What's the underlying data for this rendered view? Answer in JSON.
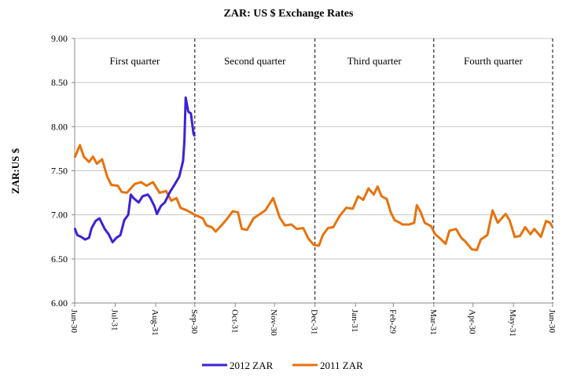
{
  "chart_data": {
    "type": "line",
    "title": "ZAR: US $ Exchange Rates",
    "xlabel": "",
    "ylabel": "ZAR:US $",
    "ylim": [
      6.0,
      9.0
    ],
    "yticks": [
      "6.00",
      "6.50",
      "7.00",
      "7.50",
      "8.00",
      "8.50",
      "9.00"
    ],
    "xticks": [
      "Jun-30",
      "Jul-31",
      "Aug-31",
      "Sep-30",
      "Oct-31",
      "Nov-30",
      "Dec-31",
      "Jan-31",
      "Feb-29",
      "Mar-31",
      "Apr-30",
      "May-31",
      "Jun-30"
    ],
    "grid": "horizontal",
    "legend": "bottom",
    "quarters": [
      "First quarter",
      "Second quarter",
      "Third quarter",
      "Fourth quarter"
    ],
    "series": [
      {
        "name": "2012 ZAR",
        "color": "#3b22d8",
        "points": [
          [
            "2012-06-30",
            6.85
          ],
          [
            "2012-07-02",
            6.77
          ],
          [
            "2012-07-05",
            6.75
          ],
          [
            "2012-07-08",
            6.72
          ],
          [
            "2012-07-11",
            6.74
          ],
          [
            "2012-07-13",
            6.85
          ],
          [
            "2012-07-16",
            6.93
          ],
          [
            "2012-07-19",
            6.96
          ],
          [
            "2012-07-23",
            6.84
          ],
          [
            "2012-07-26",
            6.78
          ],
          [
            "2012-07-29",
            6.69
          ],
          [
            "2012-08-01",
            6.74
          ],
          [
            "2012-08-04",
            6.77
          ],
          [
            "2012-08-07",
            6.94
          ],
          [
            "2012-08-10",
            7.0
          ],
          [
            "2012-08-12",
            7.23
          ],
          [
            "2012-08-14",
            7.19
          ],
          [
            "2012-08-18",
            7.14
          ],
          [
            "2012-08-21",
            7.21
          ],
          [
            "2012-08-25",
            7.23
          ],
          [
            "2012-08-27",
            7.19
          ],
          [
            "2012-08-30",
            7.1
          ],
          [
            "2012-09-01",
            7.01
          ],
          [
            "2012-09-04",
            7.1
          ],
          [
            "2012-09-07",
            7.14
          ],
          [
            "2012-09-11",
            7.26
          ],
          [
            "2012-09-14",
            7.33
          ],
          [
            "2012-09-18",
            7.43
          ],
          [
            "2012-09-21",
            7.61
          ],
          [
            "2012-09-22",
            7.83
          ],
          [
            "2012-09-23",
            8.33
          ],
          [
            "2012-09-25",
            8.17
          ],
          [
            "2012-09-27",
            8.15
          ],
          [
            "2012-09-29",
            7.92
          ],
          [
            "2012-09-30",
            7.89
          ]
        ]
      },
      {
        "name": "2011 ZAR",
        "color": "#e8720c",
        "points": [
          [
            "2011-06-30",
            7.65
          ],
          [
            "2011-07-04",
            7.79
          ],
          [
            "2011-07-07",
            7.66
          ],
          [
            "2011-07-11",
            7.6
          ],
          [
            "2011-07-14",
            7.66
          ],
          [
            "2011-07-17",
            7.58
          ],
          [
            "2011-07-21",
            7.63
          ],
          [
            "2011-07-25",
            7.43
          ],
          [
            "2011-07-28",
            7.34
          ],
          [
            "2011-08-02",
            7.33
          ],
          [
            "2011-08-05",
            7.26
          ],
          [
            "2011-08-09",
            7.25
          ],
          [
            "2011-08-12",
            7.3
          ],
          [
            "2011-08-15",
            7.35
          ],
          [
            "2011-08-20",
            7.37
          ],
          [
            "2011-08-24",
            7.33
          ],
          [
            "2011-08-29",
            7.37
          ],
          [
            "2011-09-03",
            7.25
          ],
          [
            "2011-09-08",
            7.27
          ],
          [
            "2011-09-12",
            7.16
          ],
          [
            "2011-09-16",
            7.19
          ],
          [
            "2011-09-19",
            7.08
          ],
          [
            "2011-09-24",
            7.05
          ],
          [
            "2011-09-30",
            7.0
          ],
          [
            "2011-10-06",
            6.96
          ],
          [
            "2011-10-09",
            6.88
          ],
          [
            "2011-10-13",
            6.86
          ],
          [
            "2011-10-16",
            6.81
          ],
          [
            "2011-10-21",
            6.89
          ],
          [
            "2011-10-25",
            6.96
          ],
          [
            "2011-10-29",
            7.04
          ],
          [
            "2011-11-02",
            7.03
          ],
          [
            "2011-11-05",
            6.84
          ],
          [
            "2011-11-09",
            6.83
          ],
          [
            "2011-11-14",
            6.96
          ],
          [
            "2011-11-18",
            7.0
          ],
          [
            "2011-11-23",
            7.05
          ],
          [
            "2011-11-29",
            7.19
          ],
          [
            "2011-12-04",
            6.97
          ],
          [
            "2011-12-08",
            6.88
          ],
          [
            "2011-12-13",
            6.89
          ],
          [
            "2011-12-17",
            6.84
          ],
          [
            "2011-12-22",
            6.85
          ],
          [
            "2011-12-26",
            6.73
          ],
          [
            "2011-12-30",
            6.66
          ],
          [
            "2012-01-03",
            6.65
          ],
          [
            "2012-01-06",
            6.77
          ],
          [
            "2012-01-10",
            6.85
          ],
          [
            "2012-01-14",
            6.86
          ],
          [
            "2012-01-19",
            6.99
          ],
          [
            "2012-01-24",
            7.08
          ],
          [
            "2012-01-29",
            7.07
          ],
          [
            "2012-02-02",
            7.21
          ],
          [
            "2012-02-06",
            7.17
          ],
          [
            "2012-02-10",
            7.3
          ],
          [
            "2012-02-14",
            7.23
          ],
          [
            "2012-02-17",
            7.32
          ],
          [
            "2012-02-20",
            7.21
          ],
          [
            "2012-02-24",
            7.18
          ],
          [
            "2012-02-27",
            7.03
          ],
          [
            "2012-03-01",
            6.94
          ],
          [
            "2012-03-05",
            6.91
          ],
          [
            "2012-03-07",
            6.89
          ],
          [
            "2012-03-12",
            6.89
          ],
          [
            "2012-03-16",
            6.91
          ],
          [
            "2012-03-18",
            7.11
          ],
          [
            "2012-03-21",
            7.03
          ],
          [
            "2012-03-24",
            6.91
          ],
          [
            "2012-03-29",
            6.87
          ],
          [
            "2012-04-01",
            6.78
          ],
          [
            "2012-04-05",
            6.73
          ],
          [
            "2012-04-09",
            6.67
          ],
          [
            "2012-04-12",
            6.82
          ],
          [
            "2012-04-17",
            6.84
          ],
          [
            "2012-04-21",
            6.74
          ],
          [
            "2012-04-24",
            6.7
          ],
          [
            "2012-04-29",
            6.61
          ],
          [
            "2012-05-03",
            6.6
          ],
          [
            "2012-05-06",
            6.72
          ],
          [
            "2012-05-11",
            6.77
          ],
          [
            "2012-05-15",
            7.05
          ],
          [
            "2012-05-19",
            6.91
          ],
          [
            "2012-05-22",
            6.96
          ],
          [
            "2012-05-25",
            7.01
          ],
          [
            "2012-05-28",
            6.94
          ],
          [
            "2012-06-01",
            6.75
          ],
          [
            "2012-06-05",
            6.76
          ],
          [
            "2012-06-09",
            6.86
          ],
          [
            "2012-06-13",
            6.78
          ],
          [
            "2012-06-16",
            6.84
          ],
          [
            "2012-06-21",
            6.75
          ],
          [
            "2012-06-25",
            6.93
          ],
          [
            "2012-06-28",
            6.91
          ],
          [
            "2012-06-30",
            6.86
          ]
        ]
      }
    ]
  }
}
